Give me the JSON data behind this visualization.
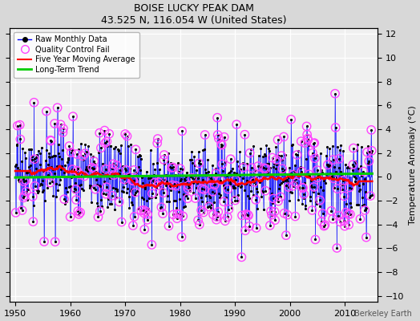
{
  "title": "BOISE LUCKY PEAK DAM",
  "subtitle": "43.525 N, 116.054 W (United States)",
  "ylabel": "Temperature Anomaly (°C)",
  "attribution": "Berkeley Earth",
  "xlim": [
    1949,
    2016
  ],
  "ylim": [
    -10.5,
    12.5
  ],
  "yticks": [
    -10,
    -8,
    -6,
    -4,
    -2,
    0,
    2,
    4,
    6,
    8,
    10,
    12
  ],
  "xticks": [
    1950,
    1960,
    1970,
    1980,
    1990,
    2000,
    2010
  ],
  "fig_background": "#d8d8d8",
  "plot_background": "#f0f0f0",
  "seed": 17,
  "years_start": 1950,
  "years_end": 2015,
  "noise_std": 1.9,
  "qc_threshold": 2.8,
  "ma_window": 60,
  "trend_slope": -0.008,
  "trend_intercept": 0.4
}
